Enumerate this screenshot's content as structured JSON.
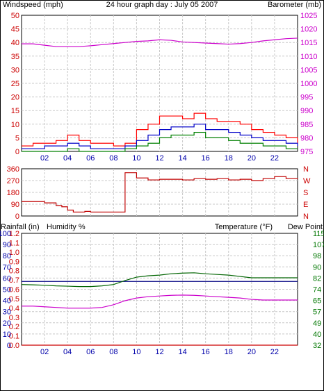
{
  "colors": {
    "wind": "#ff0000",
    "gust": "#ff0000",
    "windBlue": "#0000c8",
    "windGreen": "#008000",
    "barometer": "#cc00cc",
    "direction": "#c00000",
    "rainfall": "#cc0000",
    "humidity": "#000080",
    "temperature": "#006400",
    "dewpoint": "#cc00cc",
    "grid": "#c8c8c8",
    "axisRed": "#cc0000",
    "axisMagenta": "#cc00cc",
    "axisBlue": "#0000aa",
    "axisGreen": "#007700"
  },
  "header": {
    "title": "24 hour graph day : July 05 2007",
    "windspeed_label": "Windspeed (mph)",
    "barometer_label": "Barometer (mb)"
  },
  "section3": {
    "rainfall_label": "Rainfall (in)",
    "humidity_label": "Humidity %",
    "temperature_label": "Temperature (°F)",
    "dewpoint_label": "Dew Point"
  },
  "chart_data": [
    {
      "type": "line",
      "title": "24 hour graph day : July 05 2007",
      "x_ticks": [
        "02",
        "04",
        "06",
        "08",
        "10",
        "12",
        "14",
        "16",
        "18",
        "20",
        "22"
      ],
      "xlim": [
        0,
        24
      ],
      "left_axis": {
        "label": "Windspeed (mph)",
        "ticks": [
          "0",
          "5",
          "10",
          "15",
          "20",
          "25",
          "30",
          "35",
          "40",
          "45",
          "50"
        ],
        "ylim": [
          0,
          50
        ]
      },
      "right_axis": {
        "label": "Barometer (mb)",
        "ticks": [
          "975",
          "980",
          "985",
          "990",
          "995",
          "1000",
          "1005",
          "1010",
          "1015",
          "1020",
          "1025"
        ],
        "ylim": [
          975,
          1025
        ]
      },
      "series": [
        {
          "name": "Barometer (mb)",
          "axis": "right",
          "x": [
            0,
            1,
            2,
            3,
            4,
            5,
            6,
            7,
            8,
            9,
            10,
            11,
            12,
            13,
            14,
            15,
            16,
            17,
            18,
            19,
            20,
            21,
            22,
            23,
            24
          ],
          "y": [
            1014.5,
            1014.5,
            1014,
            1013.5,
            1013.5,
            1013.5,
            1013.8,
            1014.2,
            1014.6,
            1015,
            1015.4,
            1015.6,
            1016,
            1015.8,
            1015.2,
            1015,
            1014.8,
            1014.6,
            1014.4,
            1014.6,
            1015,
            1015.6,
            1016,
            1016.4,
            1016.6
          ]
        },
        {
          "name": "gust",
          "axis": "left",
          "x": [
            0,
            1,
            2,
            3,
            4,
            5,
            6,
            7,
            8,
            9,
            10,
            11,
            12,
            13,
            14,
            15,
            16,
            17,
            18,
            19,
            20,
            21,
            22,
            23,
            24
          ],
          "y": [
            2,
            3,
            3,
            4,
            6,
            4,
            3,
            3,
            2,
            3,
            8,
            10,
            13,
            13,
            12,
            14,
            12,
            11,
            11,
            10,
            8,
            7,
            6,
            5,
            3
          ]
        },
        {
          "name": "average",
          "axis": "left",
          "x": [
            0,
            1,
            2,
            3,
            4,
            5,
            6,
            7,
            8,
            9,
            10,
            11,
            12,
            13,
            14,
            15,
            16,
            17,
            18,
            19,
            20,
            21,
            22,
            23,
            24
          ],
          "y": [
            1,
            1,
            2,
            2,
            3,
            2,
            1,
            1,
            1,
            2,
            4,
            6,
            8,
            9,
            9,
            10,
            8,
            8,
            7,
            6,
            5,
            4,
            4,
            3,
            2
          ]
        },
        {
          "name": "lull",
          "axis": "left",
          "x": [
            0,
            1,
            2,
            3,
            4,
            5,
            6,
            7,
            8,
            9,
            10,
            11,
            12,
            13,
            14,
            15,
            16,
            17,
            18,
            19,
            20,
            21,
            22,
            23,
            24
          ],
          "y": [
            0,
            0,
            0,
            0,
            1,
            0,
            0,
            0,
            0,
            1,
            2,
            3,
            5,
            6,
            6,
            7,
            5,
            5,
            4,
            3,
            3,
            2,
            2,
            1,
            1
          ]
        }
      ]
    },
    {
      "type": "line",
      "x_ticks": [],
      "xlim": [
        0,
        24
      ],
      "left_axis": {
        "label": "",
        "ticks": [
          "0",
          "90",
          "180",
          "270",
          "360"
        ],
        "ylim": [
          0,
          360
        ]
      },
      "right_axis": {
        "label": "",
        "ticks": [
          "N",
          "E",
          "S",
          "W",
          "N"
        ],
        "ylim": [
          0,
          360
        ]
      },
      "series": [
        {
          "name": "Wind direction",
          "axis": "left",
          "x": [
            0,
            1,
            2,
            3,
            3.5,
            4,
            4.5,
            5,
            5.5,
            6,
            7,
            8,
            8.9,
            9,
            10,
            11,
            12,
            13,
            14,
            15,
            16,
            17,
            18,
            19,
            20,
            21,
            22,
            23,
            24
          ],
          "y": [
            110,
            110,
            100,
            80,
            70,
            45,
            30,
            30,
            35,
            30,
            30,
            30,
            30,
            330,
            290,
            275,
            280,
            280,
            275,
            285,
            280,
            285,
            275,
            280,
            270,
            285,
            300,
            285,
            280
          ]
        }
      ]
    },
    {
      "type": "line",
      "x_ticks": [
        "02",
        "04",
        "06",
        "08",
        "10",
        "12",
        "14",
        "16",
        "18",
        "20",
        "22"
      ],
      "xlim": [
        0,
        24
      ],
      "rainfall_axis": {
        "label": "Rainfall (in)",
        "ticks": [
          "0.0",
          "0.1",
          "0.2",
          "0.3",
          "0.4",
          "0.5",
          "0.6",
          "0.7",
          "0.8",
          "0.9",
          "1.0",
          "1.1",
          "1.2"
        ],
        "ylim": [
          0,
          1.2
        ]
      },
      "humidity_axis": {
        "label": "Humidity %",
        "ticks": [
          "0",
          "10",
          "20",
          "30",
          "40",
          "50",
          "60",
          "70",
          "80",
          "90",
          "100"
        ],
        "ylim": [
          0,
          100
        ]
      },
      "temperature_axis": {
        "label": "Temperature (°F)",
        "ticks": [
          "32",
          "40",
          "49",
          "57",
          "65",
          "74",
          "82",
          "90",
          "98",
          "107",
          "115"
        ],
        "ylim": [
          32,
          115
        ]
      },
      "series": [
        {
          "name": "Rainfall (in)",
          "axis": "rainfall",
          "x": [
            0,
            24
          ],
          "y": [
            0,
            0
          ]
        },
        {
          "name": "Humidity %",
          "axis": "humidity",
          "x": [
            0,
            24
          ],
          "y": [
            57,
            57
          ]
        },
        {
          "name": "Temperature (°F)",
          "axis": "temperature",
          "x": [
            0,
            1,
            2,
            3,
            4,
            5,
            6,
            7,
            8,
            9,
            10,
            11,
            12,
            13,
            14,
            15,
            16,
            17,
            18,
            19,
            20,
            21,
            22,
            23,
            24
          ],
          "y": [
            77,
            76.8,
            76.5,
            76,
            75.8,
            75.5,
            75.5,
            76,
            77,
            80,
            82.5,
            83.5,
            84,
            85,
            85.5,
            85.7,
            85,
            84.5,
            84,
            83,
            82,
            82,
            82,
            82,
            82
          ]
        },
        {
          "name": "Dew Point",
          "axis": "temperature",
          "x": [
            0,
            1,
            2,
            3,
            4,
            5,
            6,
            7,
            8,
            9,
            10,
            11,
            12,
            13,
            14,
            15,
            16,
            17,
            18,
            19,
            20,
            21,
            22,
            23,
            24
          ],
          "y": [
            61,
            61,
            60.5,
            60,
            59.5,
            59.5,
            59.5,
            60,
            62,
            65,
            67,
            68,
            68.5,
            69,
            69.2,
            69,
            68.5,
            68,
            67.5,
            67,
            66,
            65.5,
            65.5,
            65.5,
            65.5
          ]
        }
      ]
    }
  ]
}
